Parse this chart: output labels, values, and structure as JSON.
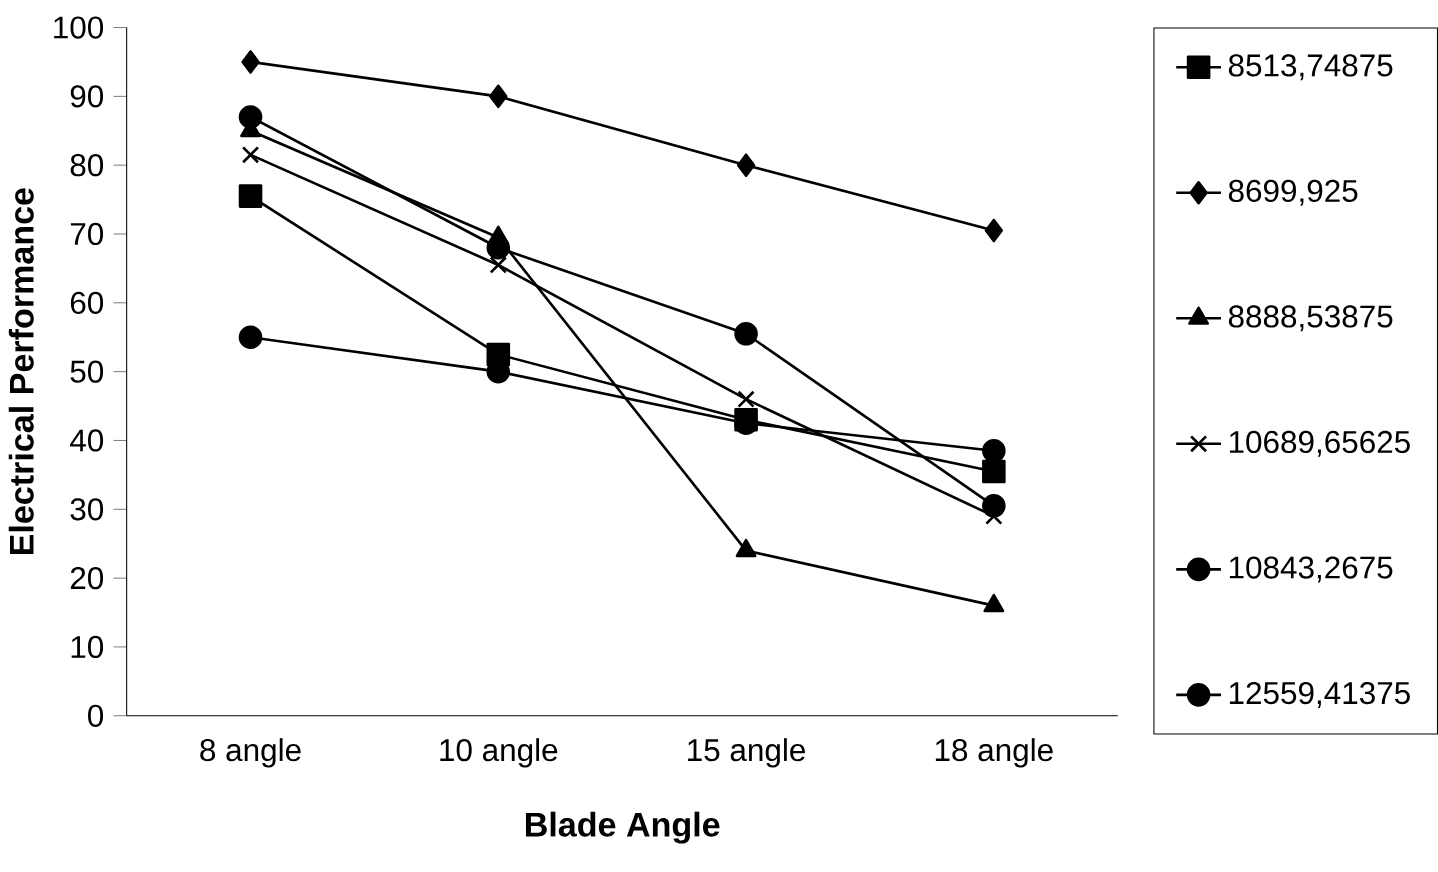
{
  "chart_data": {
    "type": "line",
    "xlabel": "Blade Angle",
    "ylabel": "Electrical Performance",
    "categories": [
      "8 angle",
      "10 angle",
      "15 angle",
      "18 angle"
    ],
    "ylim": [
      0,
      100
    ],
    "yticks": [
      0,
      10,
      20,
      30,
      40,
      50,
      60,
      70,
      80,
      90,
      100
    ],
    "grid": false,
    "legend": "right",
    "line_style": "solid",
    "series": [
      {
        "name": "8513,74875",
        "color": "#000000",
        "marker": "square",
        "values": [
          75.5,
          52.5,
          43,
          35.5
        ]
      },
      {
        "name": "8699,925",
        "color": "#000000",
        "marker": "diamond",
        "values": [
          95,
          90,
          80,
          70.5
        ]
      },
      {
        "name": "8888,53875",
        "color": "#000000",
        "marker": "triangle",
        "values": [
          85,
          69.5,
          24,
          16
        ]
      },
      {
        "name": "10689,65625",
        "color": "#000000",
        "marker": "cross",
        "values": [
          81.5,
          65.5,
          46,
          29
        ]
      },
      {
        "name": "10843,2675",
        "color": "#000000",
        "marker": "circle",
        "values": [
          87,
          68,
          55.5,
          30.5
        ]
      },
      {
        "name": "12559,41375",
        "color": "#000000",
        "marker": "circle",
        "values": [
          55,
          50,
          42.5,
          38.5
        ]
      }
    ]
  }
}
